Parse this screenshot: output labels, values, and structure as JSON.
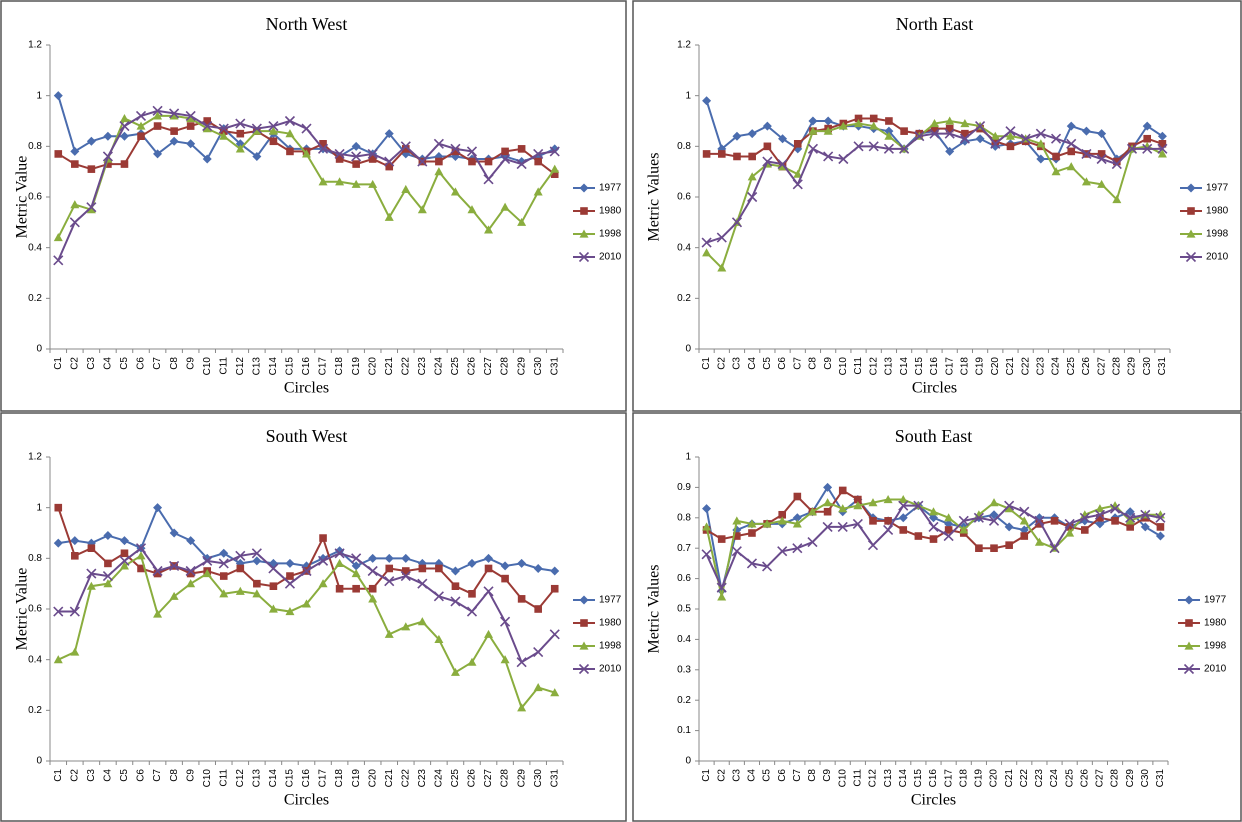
{
  "chart_data": [
    {
      "type": "line",
      "title": "North West",
      "x_label": "Circles",
      "y_label": "Metric Value",
      "legend": "right",
      "categories": [
        "C1",
        "C2",
        "C3",
        "C4",
        "C5",
        "C6",
        "C7",
        "C8",
        "C9",
        "C10",
        "C11",
        "C12",
        "C13",
        "C14",
        "C15",
        "C16",
        "C17",
        "C18",
        "C19",
        "C20",
        "C21",
        "C22",
        "C23",
        "C24",
        "C25",
        "C26",
        "C27",
        "C28",
        "C29",
        "C30",
        "C31"
      ],
      "ylim": [
        0,
        1.2
      ],
      "yticks": [
        0,
        0.2,
        0.4,
        0.6,
        0.8,
        1,
        1.2
      ],
      "series": [
        {
          "name": "1977",
          "color": "#4a6cae",
          "marker": "diamond",
          "values": [
            1.0,
            0.78,
            0.82,
            0.84,
            0.84,
            0.85,
            0.77,
            0.82,
            0.81,
            0.75,
            0.87,
            0.81,
            0.76,
            0.85,
            0.79,
            0.79,
            0.79,
            0.76,
            0.8,
            0.77,
            0.85,
            0.77,
            0.75,
            0.76,
            0.76,
            0.75,
            0.75,
            0.76,
            0.74,
            0.76,
            0.79
          ]
        },
        {
          "name": "1980",
          "color": "#9b3a35",
          "marker": "square",
          "values": [
            0.77,
            0.73,
            0.71,
            0.73,
            0.73,
            0.84,
            0.88,
            0.86,
            0.88,
            0.9,
            0.86,
            0.85,
            0.86,
            0.82,
            0.78,
            0.78,
            0.81,
            0.75,
            0.73,
            0.75,
            0.72,
            0.79,
            0.74,
            0.74,
            0.78,
            0.74,
            0.74,
            0.78,
            0.79,
            0.74,
            0.69
          ]
        },
        {
          "name": "1998",
          "color": "#8aad3e",
          "marker": "triangle",
          "values": [
            0.44,
            0.57,
            0.55,
            0.75,
            0.91,
            0.88,
            0.92,
            0.92,
            0.91,
            0.87,
            0.84,
            0.79,
            0.86,
            0.86,
            0.85,
            0.77,
            0.66,
            0.66,
            0.65,
            0.65,
            0.52,
            0.63,
            0.55,
            0.7,
            0.62,
            0.55,
            0.47,
            0.56,
            0.5,
            0.62,
            0.71
          ]
        },
        {
          "name": "2010",
          "color": "#6a4b8c",
          "marker": "cross",
          "values": [
            0.35,
            0.5,
            0.56,
            0.76,
            0.88,
            0.92,
            0.94,
            0.93,
            0.92,
            0.88,
            0.87,
            0.89,
            0.87,
            0.88,
            0.9,
            0.87,
            0.79,
            0.77,
            0.76,
            0.77,
            0.74,
            0.8,
            0.74,
            0.81,
            0.79,
            0.78,
            0.67,
            0.75,
            0.73,
            0.77,
            0.78
          ]
        }
      ]
    },
    {
      "type": "line",
      "title": "North East",
      "x_label": "Circles",
      "y_label": "Metric Values",
      "legend": "right",
      "categories": [
        "C1",
        "C2",
        "C3",
        "C4",
        "C5",
        "C6",
        "C7",
        "C8",
        "C9",
        "C10",
        "C11",
        "C12",
        "C13",
        "C14",
        "C15",
        "C16",
        "C17",
        "C18",
        "C19",
        "C20",
        "C21",
        "C22",
        "C23",
        "C24",
        "C25",
        "C26",
        "C27",
        "C28",
        "C29",
        "C30",
        "C31"
      ],
      "ylim": [
        0,
        1.2
      ],
      "yticks": [
        0,
        0.2,
        0.4,
        0.6,
        0.8,
        1,
        1.2
      ],
      "series": [
        {
          "name": "1977",
          "color": "#4a6cae",
          "marker": "diamond",
          "values": [
            0.98,
            0.79,
            0.84,
            0.85,
            0.88,
            0.83,
            0.79,
            0.9,
            0.9,
            0.88,
            0.88,
            0.87,
            0.86,
            0.79,
            0.85,
            0.86,
            0.78,
            0.82,
            0.83,
            0.8,
            0.81,
            0.82,
            0.75,
            0.75,
            0.88,
            0.86,
            0.85,
            0.75,
            0.79,
            0.88,
            0.84
          ]
        },
        {
          "name": "1980",
          "color": "#9b3a35",
          "marker": "square",
          "values": [
            0.77,
            0.77,
            0.76,
            0.76,
            0.8,
            0.72,
            0.81,
            0.86,
            0.87,
            0.89,
            0.91,
            0.91,
            0.9,
            0.86,
            0.85,
            0.87,
            0.87,
            0.85,
            0.87,
            0.82,
            0.8,
            0.82,
            0.8,
            0.76,
            0.78,
            0.77,
            0.77,
            0.74,
            0.8,
            0.83,
            0.81
          ]
        },
        {
          "name": "1998",
          "color": "#8aad3e",
          "marker": "triangle",
          "values": [
            0.38,
            0.32,
            0.5,
            0.68,
            0.73,
            0.72,
            0.69,
            0.86,
            0.86,
            0.88,
            0.89,
            0.88,
            0.84,
            0.79,
            0.84,
            0.89,
            0.9,
            0.89,
            0.88,
            0.84,
            0.84,
            0.83,
            0.81,
            0.7,
            0.72,
            0.66,
            0.65,
            0.59,
            0.79,
            0.8,
            0.77
          ]
        },
        {
          "name": "2010",
          "color": "#6a4b8c",
          "marker": "cross",
          "values": [
            0.42,
            0.44,
            0.5,
            0.6,
            0.74,
            0.73,
            0.65,
            0.79,
            0.76,
            0.75,
            0.8,
            0.8,
            0.79,
            0.79,
            0.84,
            0.85,
            0.85,
            0.83,
            0.88,
            0.81,
            0.86,
            0.83,
            0.85,
            0.83,
            0.81,
            0.77,
            0.75,
            0.73,
            0.79,
            0.79,
            0.79
          ]
        }
      ]
    },
    {
      "type": "line",
      "title": "South West",
      "x_label": "Circles",
      "y_label": "Metric Value",
      "legend": "right",
      "categories": [
        "C1",
        "C2",
        "C3",
        "C4",
        "C5",
        "C6",
        "C7",
        "C8",
        "C9",
        "C10",
        "C11",
        "C12",
        "C13",
        "C14",
        "C15",
        "C16",
        "C17",
        "C18",
        "C19",
        "C20",
        "C21",
        "C22",
        "C23",
        "C24",
        "C25",
        "C26",
        "C27",
        "C28",
        "C29",
        "C30",
        "C31"
      ],
      "ylim": [
        0,
        1.2
      ],
      "yticks": [
        0,
        0.2,
        0.4,
        0.6,
        0.8,
        1,
        1.2
      ],
      "series": [
        {
          "name": "1977",
          "color": "#4a6cae",
          "marker": "diamond",
          "values": [
            0.86,
            0.87,
            0.86,
            0.89,
            0.87,
            0.84,
            1.0,
            0.9,
            0.87,
            0.8,
            0.82,
            0.78,
            0.79,
            0.78,
            0.78,
            0.77,
            0.8,
            0.83,
            0.77,
            0.8,
            0.8,
            0.8,
            0.78,
            0.78,
            0.75,
            0.78,
            0.8,
            0.77,
            0.78,
            0.76,
            0.75
          ]
        },
        {
          "name": "1980",
          "color": "#9b3a35",
          "marker": "square",
          "values": [
            1.0,
            0.81,
            0.84,
            0.78,
            0.82,
            0.76,
            0.74,
            0.77,
            0.74,
            0.75,
            0.73,
            0.76,
            0.7,
            0.69,
            0.73,
            0.75,
            0.88,
            0.68,
            0.68,
            0.68,
            0.76,
            0.75,
            0.76,
            0.76,
            0.69,
            0.66,
            0.76,
            0.72,
            0.64,
            0.6,
            0.68
          ]
        },
        {
          "name": "1998",
          "color": "#8aad3e",
          "marker": "triangle",
          "values": [
            0.4,
            0.43,
            0.69,
            0.7,
            0.77,
            0.81,
            0.58,
            0.65,
            0.7,
            0.74,
            0.66,
            0.67,
            0.66,
            0.6,
            0.59,
            0.62,
            0.7,
            0.78,
            0.74,
            0.64,
            0.5,
            0.53,
            0.55,
            0.48,
            0.35,
            0.39,
            0.5,
            0.4,
            0.21,
            0.29,
            0.27
          ]
        },
        {
          "name": "2010",
          "color": "#6a4b8c",
          "marker": "cross",
          "values": [
            0.59,
            0.59,
            0.74,
            0.73,
            0.79,
            0.84,
            0.75,
            0.77,
            0.75,
            0.79,
            0.78,
            0.81,
            0.82,
            0.76,
            0.7,
            0.75,
            0.79,
            0.82,
            0.8,
            0.75,
            0.71,
            0.73,
            0.7,
            0.65,
            0.63,
            0.59,
            0.67,
            0.55,
            0.39,
            0.43,
            0.5
          ]
        }
      ]
    },
    {
      "type": "line",
      "title": "South East",
      "x_label": "Circles",
      "y_label": "Metric Values",
      "legend": "right",
      "categories": [
        "C1",
        "C2",
        "C3",
        "C4",
        "C5",
        "C6",
        "C7",
        "C8",
        "C9",
        "C10",
        "C11",
        "C12",
        "C13",
        "C14",
        "C15",
        "C16",
        "C17",
        "C18",
        "C19",
        "C20",
        "C21",
        "C22",
        "C23",
        "C24",
        "C25",
        "C26",
        "C27",
        "C28",
        "C29",
        "C30",
        "C31"
      ],
      "ylim": [
        0,
        1
      ],
      "yticks": [
        0,
        0.1,
        0.2,
        0.3,
        0.4,
        0.5,
        0.6,
        0.7,
        0.8,
        0.9,
        1
      ],
      "series": [
        {
          "name": "1977",
          "color": "#4a6cae",
          "marker": "diamond",
          "values": [
            0.83,
            0.56,
            0.76,
            0.78,
            0.78,
            0.78,
            0.8,
            0.82,
            0.9,
            0.82,
            0.86,
            0.8,
            0.79,
            0.8,
            0.84,
            0.8,
            0.78,
            0.77,
            0.8,
            0.81,
            0.77,
            0.76,
            0.8,
            0.8,
            0.77,
            0.79,
            0.78,
            0.8,
            0.82,
            0.77,
            0.74
          ]
        },
        {
          "name": "1980",
          "color": "#9b3a35",
          "marker": "square",
          "values": [
            0.76,
            0.73,
            0.74,
            0.75,
            0.78,
            0.81,
            0.87,
            0.82,
            0.82,
            0.89,
            0.86,
            0.79,
            0.79,
            0.76,
            0.74,
            0.73,
            0.76,
            0.75,
            0.7,
            0.7,
            0.71,
            0.74,
            0.78,
            0.79,
            0.77,
            0.76,
            0.8,
            0.79,
            0.77,
            0.8,
            0.77
          ]
        },
        {
          "name": "1998",
          "color": "#8aad3e",
          "marker": "triangle",
          "values": [
            0.77,
            0.54,
            0.79,
            0.78,
            0.78,
            0.79,
            0.78,
            0.82,
            0.85,
            0.83,
            0.84,
            0.85,
            0.86,
            0.86,
            0.84,
            0.82,
            0.8,
            0.76,
            0.81,
            0.85,
            0.83,
            0.79,
            0.72,
            0.7,
            0.75,
            0.81,
            0.83,
            0.84,
            0.79,
            0.81,
            0.81
          ]
        },
        {
          "name": "2010",
          "color": "#6a4b8c",
          "marker": "cross",
          "values": [
            0.68,
            0.57,
            0.69,
            0.65,
            0.64,
            0.69,
            0.7,
            0.72,
            0.77,
            0.77,
            0.78,
            0.71,
            0.76,
            0.84,
            0.84,
            0.77,
            0.74,
            0.79,
            0.8,
            0.79,
            0.84,
            0.82,
            0.79,
            0.7,
            0.78,
            0.8,
            0.81,
            0.83,
            0.8,
            0.81,
            0.8
          ]
        }
      ]
    }
  ]
}
